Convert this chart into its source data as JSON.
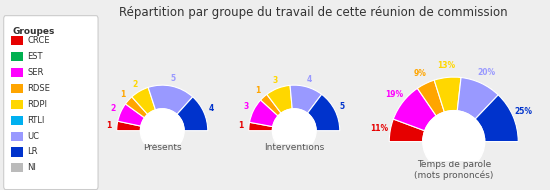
{
  "title": "Répartition par groupe du travail de cette réunion de commission",
  "groups": [
    "CRCE",
    "EST",
    "SER",
    "RDSE",
    "RDPI",
    "RTLI",
    "UC",
    "LR",
    "NI"
  ],
  "colors": [
    "#e60000",
    "#00b050",
    "#ff00ff",
    "#ffa500",
    "#ffd700",
    "#00b0f0",
    "#9999ff",
    "#0033cc",
    "#bbbbbb"
  ],
  "presences": [
    1,
    0,
    2,
    1,
    2,
    0,
    5,
    4,
    0
  ],
  "interventions": [
    1,
    0,
    3,
    1,
    3,
    0,
    4,
    5,
    0
  ],
  "temps_parole": [
    11,
    0,
    19,
    9,
    13,
    0,
    20,
    25,
    0
  ],
  "background_color": "#eeeeee",
  "subtitle_presences": "Présents",
  "subtitle_interventions": "Interventions",
  "subtitle_temps": "Temps de parole\n(mots prononcés)",
  "legend_title": "Groupes"
}
